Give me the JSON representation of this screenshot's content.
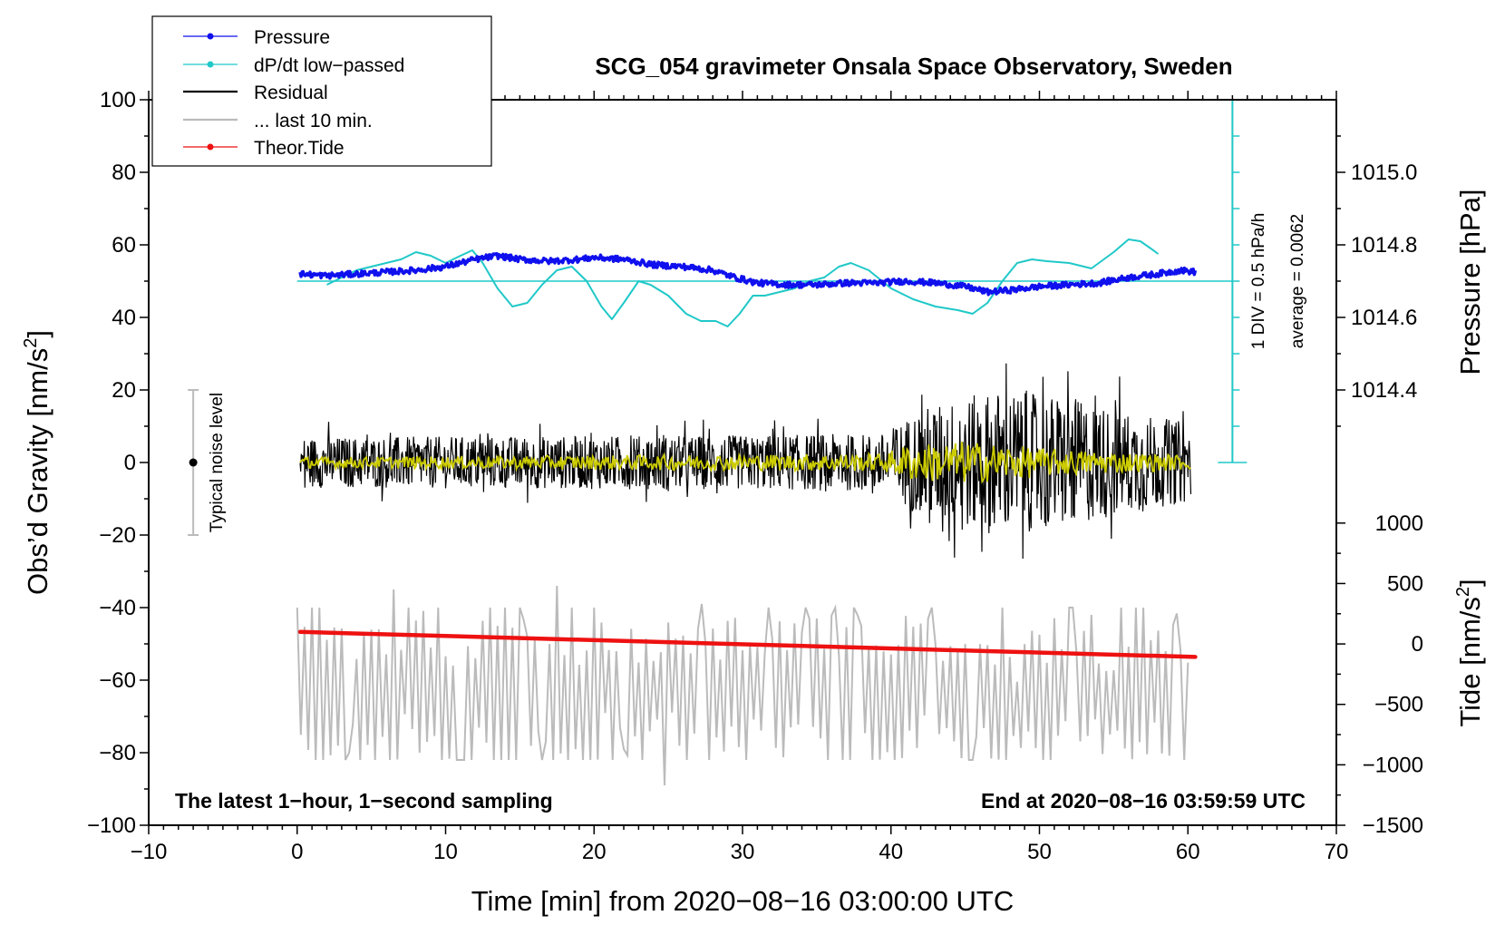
{
  "chart_data": {
    "type": "line",
    "title": "SCG_054 gravimeter Onsala Space Observatory, Sweden",
    "xlabel": "Time [min] from 2020−08−16 03:00:00 UTC",
    "ylabel_left_prefix": "Obs’d Gravity [nm/s",
    "ylabel_left_sup": "2",
    "ylabel_left_suffix": "]",
    "ylabel_right_pressure": "Pressure [hPa]",
    "ylabel_right_tide_prefix": "Tide [nm/s",
    "ylabel_right_tide_sup": "2",
    "ylabel_right_tide_suffix": "]",
    "xlim": [
      -10,
      70
    ],
    "ylim": [
      -100,
      100
    ],
    "x_ticks": [
      -10,
      0,
      10,
      20,
      30,
      40,
      50,
      60,
      70
    ],
    "x_tick_labels": [
      "−10",
      "0",
      "10",
      "20",
      "30",
      "40",
      "50",
      "60",
      "70"
    ],
    "y_ticks": [
      -100,
      -80,
      -60,
      -40,
      -20,
      0,
      20,
      40,
      60,
      80,
      100
    ],
    "y_tick_labels": [
      "−100",
      "−80",
      "−60",
      "−40",
      "−20",
      "0",
      "20",
      "40",
      "60",
      "80",
      "100"
    ],
    "pressure_axis": {
      "ticks": [
        1014.4,
        1014.6,
        1014.8,
        1015.0
      ],
      "tick_labels": [
        "1014.4",
        "1014.6",
        "1014.8",
        "1015.0"
      ],
      "map": {
        "hpa": [
          1014.4,
          1015.0
        ],
        "gravity": [
          20,
          80
        ]
      }
    },
    "tide_axis": {
      "ticks": [
        -1500,
        -1000,
        -500,
        0,
        500,
        1000
      ],
      "tick_labels": [
        "−1500",
        "−1000",
        "−500",
        "0",
        "500",
        "1000"
      ],
      "map": {
        "tide": [
          -1500,
          1000
        ],
        "gravity": [
          -100,
          -16.7
        ]
      }
    },
    "legend": [
      {
        "label": "Pressure",
        "color": "#1010ee",
        "marker": true
      },
      {
        "label": "dP/dt low−passed",
        "color": "#20c8c8",
        "marker": true
      },
      {
        "label": "Residual",
        "color": "#000000",
        "marker": false
      },
      {
        "label": "... last 10 min.",
        "color": "#bbbbbb",
        "marker": false
      },
      {
        "label": "Theor.Tide",
        "color": "#ee1111",
        "marker": true
      }
    ],
    "annotations": {
      "sampling": "The latest 1−hour, 1−second sampling",
      "end_time": "End at 2020−08−16 03:59:59 UTC",
      "noise_label": "Typical noise level",
      "div_label": "1 DIV = 0.5 hPa/h",
      "average_label": "average = 0.0062"
    },
    "noise_bar": {
      "x": -7,
      "center": 0,
      "half_range": 20
    },
    "dpdt_scale": {
      "x": 63,
      "y_range": [
        0,
        100
      ],
      "divisions": 10,
      "zero_line_y": 50
    },
    "series": [
      {
        "name": "Pressure",
        "color": "#1010ee",
        "x": [
          0.2,
          2,
          4,
          6,
          8,
          10,
          12,
          13.5,
          15,
          17,
          19,
          20,
          22,
          24,
          26,
          28,
          29.5,
          31,
          33,
          35,
          37,
          39,
          41,
          43,
          45,
          46.5,
          48,
          50,
          52,
          54,
          56,
          58,
          59.5,
          60.5
        ],
        "y": [
          52,
          51.5,
          52,
          52.5,
          53,
          54,
          56,
          57,
          56,
          55.5,
          56,
          56.5,
          56,
          54.5,
          54,
          53,
          51,
          49.5,
          49,
          49,
          49.5,
          49.5,
          50,
          49.5,
          48.5,
          47,
          47.5,
          48.5,
          49,
          49.5,
          51,
          52,
          53,
          52.5
        ]
      },
      {
        "name": "dP/dt low−passed",
        "color": "#20c8c8",
        "x": [
          2,
          3,
          4,
          5,
          6,
          7,
          8,
          9,
          10,
          11,
          11.8,
          12.5,
          13.5,
          14.5,
          15.5,
          16.5,
          17.5,
          18.5,
          19.5,
          20.5,
          21.2,
          22,
          23,
          23.8,
          25,
          26.2,
          27.2,
          28.2,
          29,
          29.8,
          30.7,
          31.5,
          32.5,
          33.5,
          34.5,
          35.5,
          36.5,
          37.3,
          38.5,
          40,
          41.5,
          43,
          44.5,
          45.5,
          46.5,
          47.5,
          48.5,
          49.5,
          50.5,
          52,
          53.5,
          55,
          56,
          56.8,
          57.5,
          58
        ],
        "y": [
          49,
          51,
          53,
          54,
          55,
          56,
          58,
          57,
          55,
          57,
          58.5,
          55,
          48,
          43,
          44,
          49,
          53,
          54,
          50,
          43,
          39.5,
          44,
          50,
          49,
          46,
          41,
          39,
          39,
          37.5,
          41,
          46,
          46,
          47,
          48,
          50,
          51,
          54,
          55,
          53,
          48,
          45,
          43,
          42,
          41,
          44,
          50,
          55,
          56,
          55.5,
          55,
          53.5,
          58,
          61.5,
          61,
          59,
          57.5
        ]
      },
      {
        "name": "dP/dt zero line",
        "color": "#20c8c8",
        "x": [
          0,
          63
        ],
        "y": [
          50,
          50
        ]
      },
      {
        "name": "Theor.Tide",
        "color": "#ee1111",
        "x": [
          0.2,
          60.5
        ],
        "y": [
          -46.7,
          -53.6
        ]
      },
      {
        "name": "Residual",
        "color": "#000000",
        "x_range": [
          0.2,
          60.2
        ],
        "samples": 3600,
        "description": "1-second residual; ~±7 nm/s² for t<40 min, ~±18 nm/s² for t>40 min",
        "envelope": {
          "x": [
            0.2,
            30,
            39.5,
            42,
            47,
            52,
            56,
            60.2
          ],
          "amplitude": [
            7,
            7.5,
            8,
            15,
            20,
            18,
            14,
            11
          ]
        }
      },
      {
        "name": "Residual smoothed",
        "color": "#cccc00",
        "x_range": [
          0.2,
          60.2
        ],
        "envelope": {
          "x": [
            0.2,
            39.5,
            41,
            45,
            50,
            55,
            60.2
          ],
          "amplitude": [
            1.5,
            2.5,
            5,
            6,
            4,
            3,
            2
          ]
        }
      },
      {
        "name": "... last 10 min.",
        "color": "#bbbbbb",
        "x_range": [
          0,
          60
        ],
        "baseline": -64,
        "peaks": [
          [
            6.5,
            -35
          ],
          [
            17.6,
            -34
          ],
          [
            24.8,
            -89
          ],
          [
            27.2,
            -39
          ],
          [
            3.4,
            -80
          ],
          [
            8.2,
            -80
          ],
          [
            21.9,
            -79
          ],
          [
            47.5,
            -40
          ]
        ]
      }
    ]
  }
}
